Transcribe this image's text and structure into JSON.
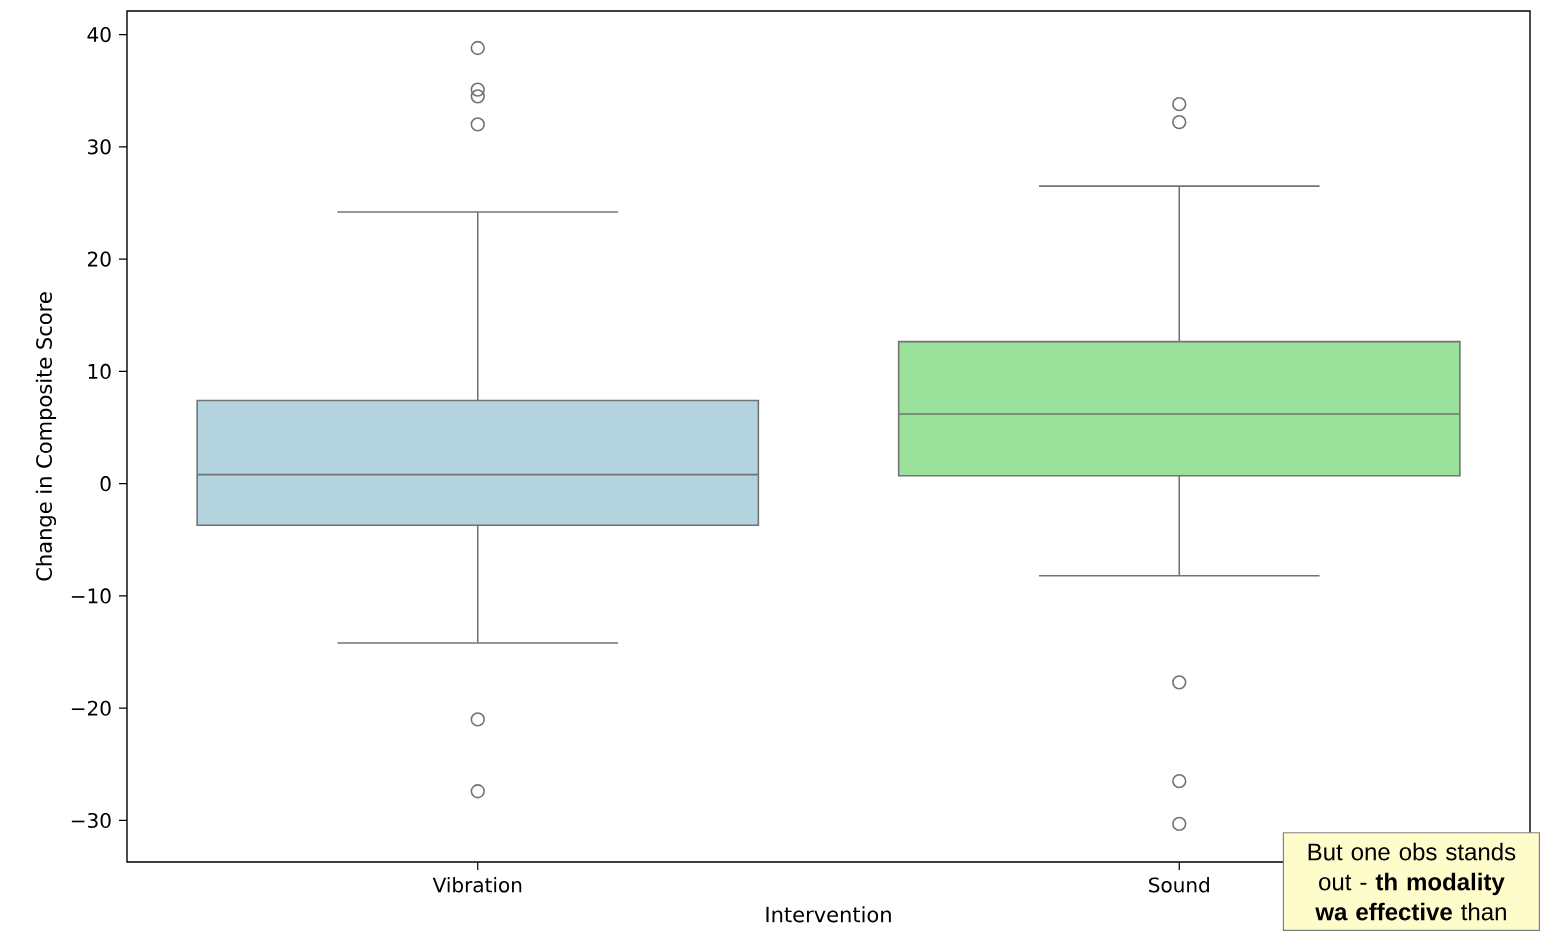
{
  "chart_data": {
    "type": "box",
    "xlabel": "Intervention",
    "ylabel": "Change in Composite Score",
    "categories": [
      "Vibration",
      "Sound"
    ],
    "colors": [
      "#b3d4df",
      "#9ae29c"
    ],
    "boxes": [
      {
        "low": -14.2,
        "q1": -3.7,
        "median": 0.8,
        "q3": 7.4,
        "high": 24.2,
        "outliers": [
          38.8,
          35.1,
          34.5,
          32.0,
          -21.0,
          -27.4
        ]
      },
      {
        "low": -8.2,
        "q1": 0.7,
        "median": 6.2,
        "q3": 12.65,
        "high": 26.5,
        "outliers": [
          33.8,
          32.2,
          -17.7,
          -26.5,
          -30.3
        ]
      }
    ],
    "ylim": [
      -33.7,
      42.1
    ],
    "yticks": [
      {
        "value": -30,
        "label": "−30"
      },
      {
        "value": -20,
        "label": "−20"
      },
      {
        "value": -10,
        "label": "−10"
      },
      0,
      10,
      20,
      30,
      40
    ],
    "annotations": [
      "But one obs stands out - **th modality wa effective** than"
    ]
  }
}
